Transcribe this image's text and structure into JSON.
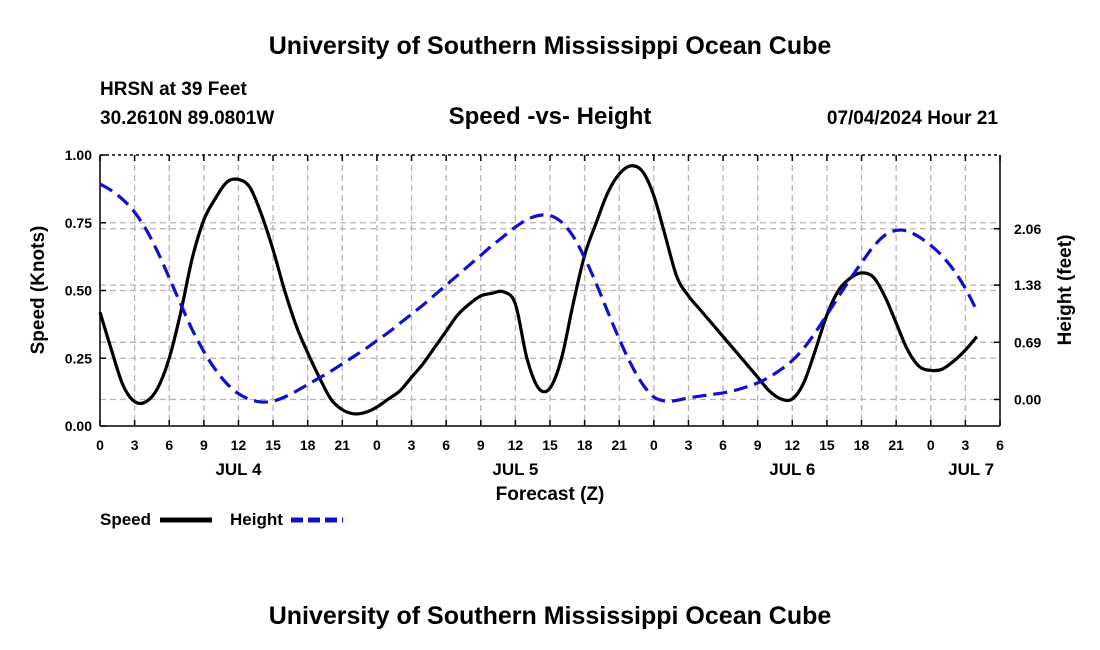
{
  "header": {
    "title": "University of Southern Mississippi Ocean Cube",
    "station": "HRSN at 39 Feet",
    "location": "30.2610N  89.0801W",
    "datetime": "07/04/2024 Hour 21"
  },
  "footer": {
    "title": "University of Southern Mississippi Ocean Cube"
  },
  "chart_data": {
    "type": "line",
    "title": "Speed -vs- Height",
    "xlabel": "Forecast (Z)",
    "ylabel_left": "Speed (Knots)",
    "ylabel_right": "Height (feet)",
    "x_unit": "hours from 00Z JUL 4",
    "xlim": [
      0,
      78
    ],
    "ylim_left": [
      0,
      1.0
    ],
    "ylim_right": [
      -0.32,
      2.95
    ],
    "x_tick_values": [
      0,
      3,
      6,
      9,
      12,
      15,
      18,
      21,
      24,
      27,
      30,
      33,
      36,
      39,
      42,
      45,
      48,
      51,
      54,
      57,
      60,
      63,
      66,
      69,
      72,
      75,
      78
    ],
    "x_tick_labels": [
      "0",
      "3",
      "6",
      "9",
      "12",
      "15",
      "18",
      "21",
      "0",
      "3",
      "6",
      "9",
      "12",
      "15",
      "18",
      "21",
      "0",
      "3",
      "6",
      "9",
      "12",
      "15",
      "18",
      "21",
      "0",
      "3",
      "6"
    ],
    "day_labels": [
      {
        "x": 12,
        "label": "JUL 4"
      },
      {
        "x": 36,
        "label": "JUL 5"
      },
      {
        "x": 60,
        "label": "JUL 6"
      },
      {
        "x": 75.5,
        "label": "JUL 7"
      }
    ],
    "left_ticks": [
      {
        "value": 0,
        "label": "0.00"
      },
      {
        "value": 0.25,
        "label": "0.25"
      },
      {
        "value": 0.5,
        "label": "0.50"
      },
      {
        "value": 0.75,
        "label": "0.75"
      },
      {
        "value": 1.0,
        "label": "1.00"
      }
    ],
    "right_ticks": [
      {
        "value": 0.0,
        "label": "0.00"
      },
      {
        "value": 0.69,
        "label": "0.69"
      },
      {
        "value": 1.38,
        "label": "1.38"
      },
      {
        "value": 2.06,
        "label": "2.06"
      }
    ],
    "grid": true,
    "legend": [
      {
        "name": "Speed",
        "color": "#000000",
        "style": "solid"
      },
      {
        "name": "Height",
        "color": "#1010cc",
        "style": "dashed"
      }
    ],
    "series": [
      {
        "name": "Speed",
        "axis": "left",
        "color": "#000000",
        "style": "solid",
        "points": [
          [
            0,
            0.42
          ],
          [
            1,
            0.28
          ],
          [
            2,
            0.15
          ],
          [
            3,
            0.09
          ],
          [
            4,
            0.09
          ],
          [
            5,
            0.14
          ],
          [
            6,
            0.25
          ],
          [
            7,
            0.42
          ],
          [
            8,
            0.62
          ],
          [
            9,
            0.76
          ],
          [
            10,
            0.84
          ],
          [
            11,
            0.9
          ],
          [
            12,
            0.91
          ],
          [
            13,
            0.88
          ],
          [
            14,
            0.78
          ],
          [
            15,
            0.65
          ],
          [
            16,
            0.5
          ],
          [
            17,
            0.37
          ],
          [
            18,
            0.27
          ],
          [
            19,
            0.18
          ],
          [
            20,
            0.1
          ],
          [
            21,
            0.06
          ],
          [
            22,
            0.045
          ],
          [
            23,
            0.05
          ],
          [
            24,
            0.07
          ],
          [
            25,
            0.1
          ],
          [
            26,
            0.13
          ],
          [
            27,
            0.18
          ],
          [
            28,
            0.23
          ],
          [
            29,
            0.29
          ],
          [
            30,
            0.35
          ],
          [
            31,
            0.41
          ],
          [
            32,
            0.45
          ],
          [
            33,
            0.48
          ],
          [
            34,
            0.49
          ],
          [
            35,
            0.495
          ],
          [
            36,
            0.45
          ],
          [
            37,
            0.25
          ],
          [
            38,
            0.14
          ],
          [
            39,
            0.14
          ],
          [
            40,
            0.25
          ],
          [
            41,
            0.45
          ],
          [
            42,
            0.63
          ],
          [
            43,
            0.75
          ],
          [
            44,
            0.86
          ],
          [
            45,
            0.93
          ],
          [
            46,
            0.96
          ],
          [
            47,
            0.94
          ],
          [
            48,
            0.85
          ],
          [
            49,
            0.7
          ],
          [
            50,
            0.55
          ],
          [
            51,
            0.48
          ],
          [
            52,
            0.43
          ],
          [
            53,
            0.38
          ],
          [
            54,
            0.33
          ],
          [
            55,
            0.28
          ],
          [
            56,
            0.23
          ],
          [
            57,
            0.18
          ],
          [
            58,
            0.13
          ],
          [
            59,
            0.1
          ],
          [
            60,
            0.1
          ],
          [
            61,
            0.16
          ],
          [
            62,
            0.28
          ],
          [
            63,
            0.41
          ],
          [
            64,
            0.5
          ],
          [
            65,
            0.545
          ],
          [
            66,
            0.565
          ],
          [
            67,
            0.55
          ],
          [
            68,
            0.48
          ],
          [
            69,
            0.38
          ],
          [
            70,
            0.28
          ],
          [
            71,
            0.22
          ],
          [
            72,
            0.205
          ],
          [
            73,
            0.21
          ],
          [
            74,
            0.24
          ],
          [
            75,
            0.28
          ],
          [
            76,
            0.33
          ]
        ]
      },
      {
        "name": "Height",
        "axis": "right",
        "color": "#1010cc",
        "style": "dashed",
        "points": [
          [
            0,
            2.6
          ],
          [
            1,
            2.52
          ],
          [
            2,
            2.41
          ],
          [
            3,
            2.26
          ],
          [
            4,
            2.05
          ],
          [
            5,
            1.78
          ],
          [
            6,
            1.47
          ],
          [
            7,
            1.15
          ],
          [
            8,
            0.84
          ],
          [
            9,
            0.58
          ],
          [
            10,
            0.36
          ],
          [
            11,
            0.19
          ],
          [
            12,
            0.07
          ],
          [
            13,
            0.0
          ],
          [
            14,
            -0.03
          ],
          [
            15,
            -0.02
          ],
          [
            16,
            0.03
          ],
          [
            17,
            0.1
          ],
          [
            18,
            0.18
          ],
          [
            19,
            0.26
          ],
          [
            20,
            0.34
          ],
          [
            21,
            0.43
          ],
          [
            22,
            0.52
          ],
          [
            23,
            0.61
          ],
          [
            24,
            0.71
          ],
          [
            25,
            0.81
          ],
          [
            26,
            0.92
          ],
          [
            27,
            1.03
          ],
          [
            28,
            1.14
          ],
          [
            29,
            1.26
          ],
          [
            30,
            1.38
          ],
          [
            31,
            1.5
          ],
          [
            32,
            1.62
          ],
          [
            33,
            1.74
          ],
          [
            34,
            1.86
          ],
          [
            35,
            1.97
          ],
          [
            36,
            2.08
          ],
          [
            37,
            2.17
          ],
          [
            38,
            2.22
          ],
          [
            39,
            2.22
          ],
          [
            40,
            2.14
          ],
          [
            41,
            1.97
          ],
          [
            42,
            1.71
          ],
          [
            43,
            1.4
          ],
          [
            44,
            1.06
          ],
          [
            45,
            0.73
          ],
          [
            46,
            0.43
          ],
          [
            47,
            0.19
          ],
          [
            48,
            0.03
          ],
          [
            49,
            -0.02
          ],
          [
            50,
            -0.01
          ],
          [
            51,
            0.02
          ],
          [
            52,
            0.04
          ],
          [
            53,
            0.06
          ],
          [
            54,
            0.08
          ],
          [
            55,
            0.11
          ],
          [
            56,
            0.15
          ],
          [
            57,
            0.2
          ],
          [
            58,
            0.27
          ],
          [
            59,
            0.36
          ],
          [
            60,
            0.47
          ],
          [
            61,
            0.62
          ],
          [
            62,
            0.81
          ],
          [
            63,
            1.02
          ],
          [
            64,
            1.24
          ],
          [
            65,
            1.45
          ],
          [
            66,
            1.65
          ],
          [
            67,
            1.84
          ],
          [
            68,
            1.98
          ],
          [
            69,
            2.04
          ],
          [
            70,
            2.03
          ],
          [
            71,
            1.96
          ],
          [
            72,
            1.86
          ],
          [
            73,
            1.73
          ],
          [
            74,
            1.56
          ],
          [
            75,
            1.34
          ],
          [
            76,
            1.07
          ]
        ]
      }
    ]
  }
}
